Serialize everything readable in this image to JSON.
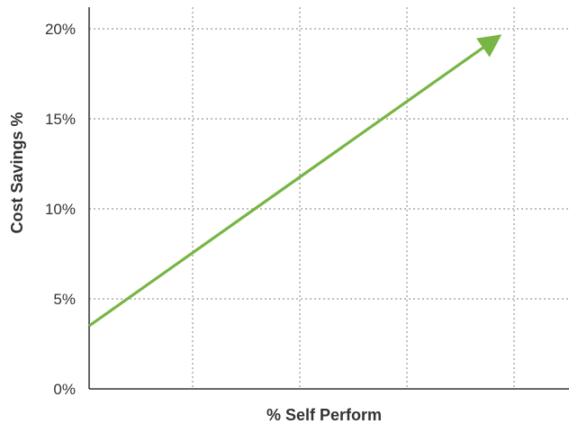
{
  "chart_data": {
    "type": "line",
    "title": "",
    "xlabel": "% Self Perform",
    "ylabel": "Cost Savings %",
    "ylim": [
      0,
      20
    ],
    "y_ticks": [
      "0%",
      "5%",
      "10%",
      "15%",
      "20%"
    ],
    "y_tick_values": [
      0,
      5,
      10,
      15,
      20
    ],
    "x_ticks": [],
    "grid": true,
    "legend": "none",
    "series": [
      {
        "color": "#77b544",
        "arrow_end": true,
        "points": [
          {
            "x": 0,
            "y": 3.5
          },
          {
            "x": 0.85,
            "y": 19.5
          }
        ]
      }
    ]
  }
}
